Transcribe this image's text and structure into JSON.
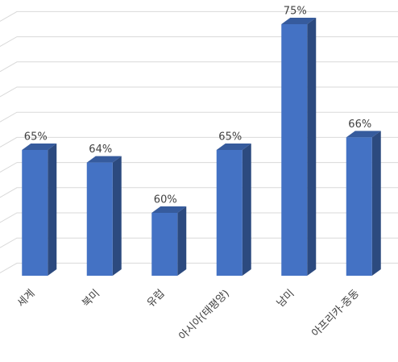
{
  "chart_data": {
    "type": "bar3d",
    "categories": [
      "세계",
      "북미",
      "유럽",
      "아시아(태평양)",
      "남미",
      "아프리카-중동"
    ],
    "values": [
      65,
      64,
      60,
      65,
      75,
      66
    ],
    "value_labels": [
      "65%",
      "64%",
      "60%",
      "65%",
      "75%",
      "66%"
    ],
    "color": "#4472c4",
    "ylim": [
      55,
      76
    ],
    "yticks": [
      56,
      58,
      60,
      62,
      64,
      66,
      68,
      70,
      72,
      74,
      76
    ],
    "grid": true
  }
}
